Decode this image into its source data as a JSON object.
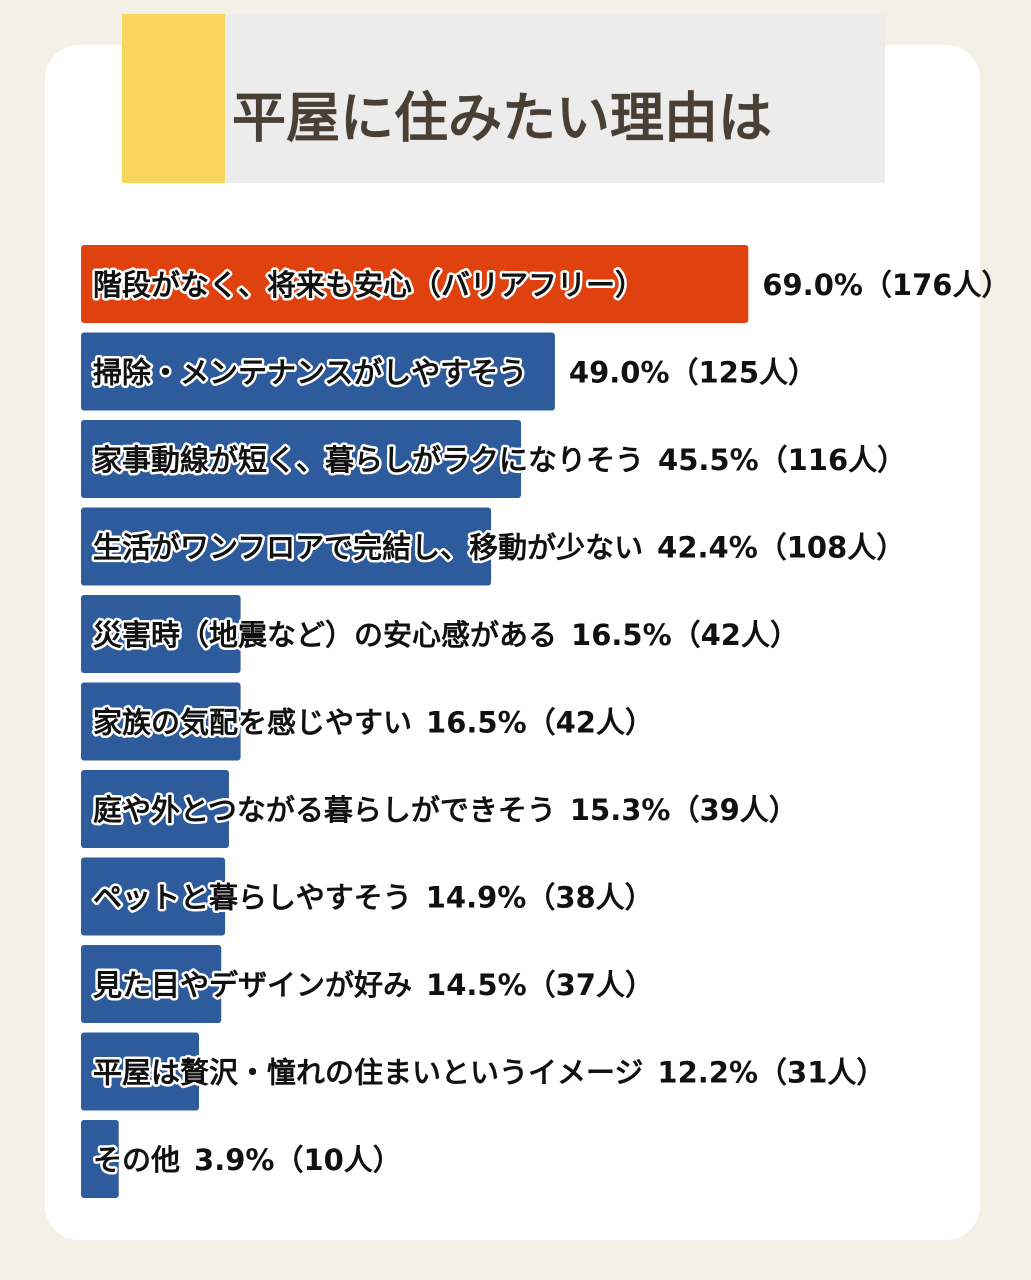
{
  "chart_data": {
    "type": "barh",
    "title": "平屋に住みたい理由は",
    "categories": [
      "階段がなく、将来も安心（バリアフリー）",
      "掃除・メンテナンスがしやすそう",
      "家事動線が短く、暮らしがラクになりそう",
      "生活がワンフロアで完結し、移動が少ない",
      "災害時（地震など）の安心感がある",
      "家族の気配を感じやすい",
      "庭や外とつながる暮らしができそう",
      "ペットと暮らしやすそう",
      "見た目やデザインが好み",
      "平屋は贅沢・憧れの住まいというイメージ",
      "その他"
    ],
    "values": [
      69.0,
      49.0,
      45.5,
      42.4,
      16.5,
      16.5,
      15.3,
      14.9,
      14.5,
      12.2,
      3.9
    ],
    "value_labels": [
      "69.0%（176人）",
      "49.0%（125人）",
      "45.5%（116人）",
      "42.4%（108人）",
      "16.5%（42人）",
      "16.5%（42人）",
      "15.3%（39人）",
      "14.9%（38人）",
      "14.5%（37人）",
      "12.2%（31人）",
      "3.9%（10人）"
    ],
    "colors": [
      "#e0420f",
      "#2e5b9b",
      "#2e5b9b",
      "#2e5b9b",
      "#2e5b9b",
      "#2e5b9b",
      "#2e5b9b",
      "#2e5b9b",
      "#2e5b9b",
      "#2e5b9b",
      "#2e5b9b"
    ],
    "xlim": [
      0,
      70
    ]
  }
}
